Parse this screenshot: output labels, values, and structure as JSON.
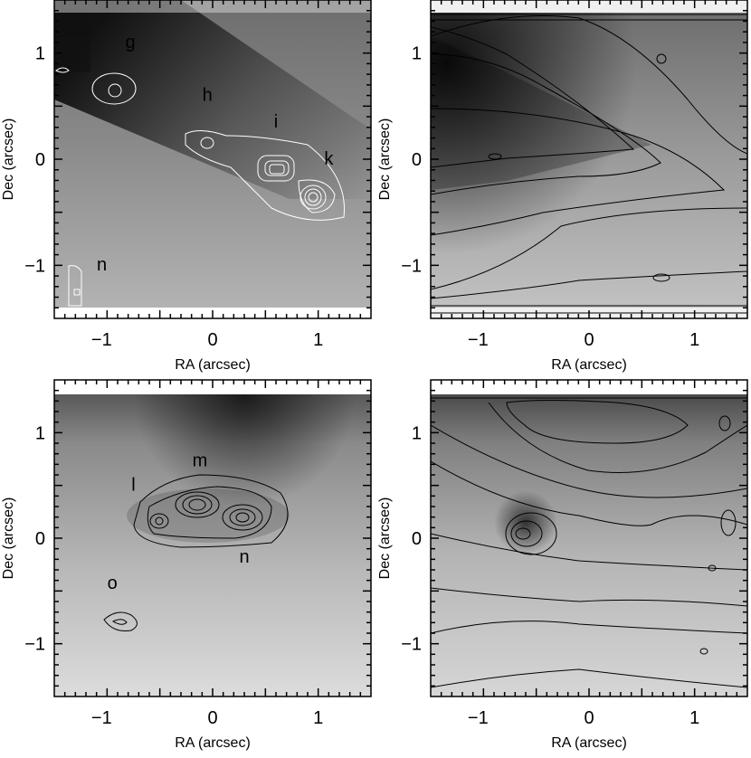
{
  "figure": {
    "panels": [
      {
        "id": "top-left",
        "xlabel": "RA (arcsec)",
        "ylabel": "Dec (arcsec)",
        "xticks": [
          "−1",
          "0",
          "1"
        ],
        "yticks": [
          "1",
          "0",
          "−1"
        ],
        "labels": [
          {
            "text": "g",
            "x": -0.78,
            "y": 1.05
          },
          {
            "text": "h",
            "x": -0.05,
            "y": 0.55
          },
          {
            "text": "i",
            "x": 0.6,
            "y": 0.3
          },
          {
            "text": "k",
            "x": 1.1,
            "y": -0.05
          },
          {
            "text": "n",
            "x": -1.05,
            "y": -1.05
          }
        ],
        "contour_color": "#ffffff"
      },
      {
        "id": "top-right",
        "xlabel": "RA (arcsec)",
        "ylabel": "Dec (arcsec)",
        "xticks": [
          "−1",
          "0",
          "1"
        ],
        "yticks": [
          "1",
          "0",
          "−1"
        ],
        "labels": [],
        "contour_color": "#000000"
      },
      {
        "id": "bottom-left",
        "xlabel": "RA (arcsec)",
        "ylabel": "Dec (arcsec)",
        "xticks": [
          "−1",
          "0",
          "1"
        ],
        "yticks": [
          "1",
          "0",
          "−1"
        ],
        "labels": [
          {
            "text": "m",
            "x": -0.12,
            "y": 0.68
          },
          {
            "text": "l",
            "x": -0.75,
            "y": 0.45
          },
          {
            "text": "n",
            "x": 0.3,
            "y": -0.23
          },
          {
            "text": "o",
            "x": -0.95,
            "y": -0.48
          }
        ],
        "contour_color": "#000000"
      },
      {
        "id": "bottom-right",
        "xlabel": "RA (arcsec)",
        "ylabel": "Dec (arcsec)",
        "xticks": [
          "−1",
          "0",
          "1"
        ],
        "yticks": [
          "1",
          "0",
          "−1"
        ],
        "labels": [],
        "contour_color": "#000000"
      }
    ]
  }
}
